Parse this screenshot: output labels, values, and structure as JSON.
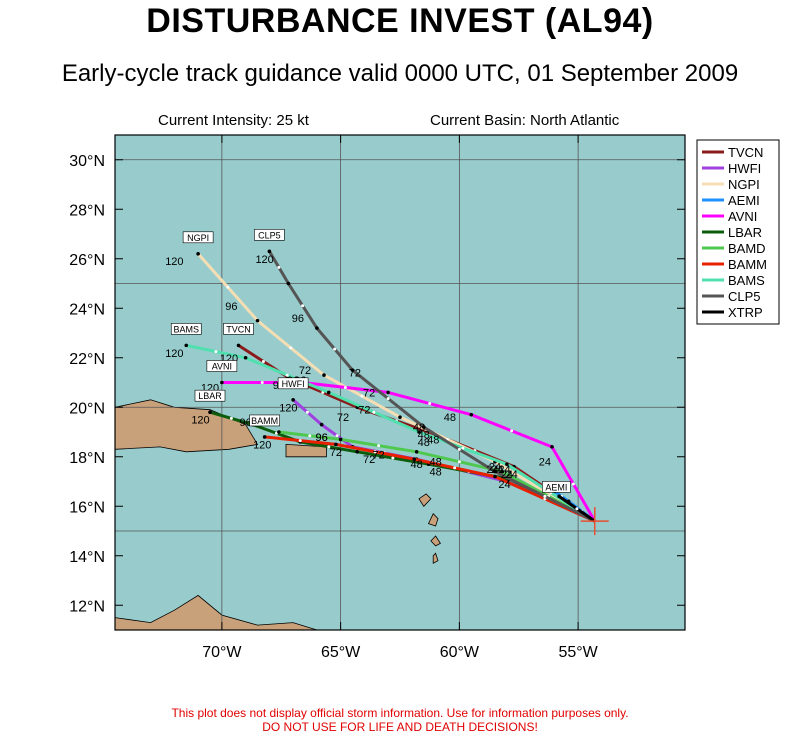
{
  "title": "DISTURBANCE INVEST (AL94)",
  "subtitle": "Early-cycle track guidance valid 0000 UTC, 01 September 2009",
  "current_intensity": "Current Intensity: 25 kt",
  "current_basin": "Current Basin: North Atlantic",
  "disclaimer_line1": "This plot does not display official storm information. Use for information purposes only.",
  "disclaimer_line2": "DO NOT USE FOR LIFE AND DEATH DECISIONS!",
  "colors": {
    "ocean": "#98cccc",
    "land": "#c8a07a",
    "grid": "#555555",
    "storm_marker": "#e85030",
    "disclaimer": "#e00000"
  },
  "chart_data": {
    "type": "map",
    "lon_range": [
      -74.5,
      -50.5
    ],
    "lat_range": [
      11,
      31
    ],
    "x_ticks": [
      {
        "lon": -70,
        "label": "70°W"
      },
      {
        "lon": -65,
        "label": "65°W"
      },
      {
        "lon": -60,
        "label": "60°W"
      },
      {
        "lon": -55,
        "label": "55°W"
      }
    ],
    "y_ticks": [
      {
        "lat": 30,
        "label": "30°N"
      },
      {
        "lat": 28,
        "label": "28°N"
      },
      {
        "lat": 26,
        "label": "26°N"
      },
      {
        "lat": 24,
        "label": "24°N"
      },
      {
        "lat": 22,
        "label": "22°N"
      },
      {
        "lat": 20,
        "label": "20°N"
      },
      {
        "lat": 18,
        "label": "18°N"
      },
      {
        "lat": 16,
        "label": "16°N"
      },
      {
        "lat": 14,
        "label": "14°N"
      },
      {
        "lat": 12,
        "label": "12°N"
      }
    ],
    "grid_lon": [
      -70,
      -65,
      -60,
      -55
    ],
    "grid_lat": [
      15,
      20,
      25,
      30
    ],
    "storm_position": {
      "lon": -54.3,
      "lat": 15.4
    },
    "legend_position": "top-right",
    "models": [
      {
        "name": "TVCN",
        "color": "#8b1a1a",
        "label": "TVCN",
        "label_at": 120,
        "track": [
          [
            -54.3,
            15.4
          ],
          [
            -57.7,
            17.6
          ],
          [
            -61.0,
            18.9
          ],
          [
            -64.3,
            20.0
          ],
          [
            -67.2,
            21.2
          ],
          [
            -69.3,
            22.5
          ]
        ],
        "hours": [
          {
            "h": 24,
            "lon": -57.8,
            "lat": 17.3
          },
          {
            "h": 48,
            "lon": -61.1,
            "lat": 18.7
          },
          {
            "h": 72,
            "lon": -64.0,
            "lat": 19.9
          },
          {
            "h": 96,
            "lon": -66.7,
            "lat": 21.1
          },
          {
            "h": 120,
            "lon": -69.7,
            "lat": 22.0
          }
        ]
      },
      {
        "name": "HWFI",
        "color": "#a040e0",
        "label": "HWFI",
        "label_at": 120,
        "track": [
          [
            -54.3,
            15.4
          ],
          [
            -58.0,
            17.0
          ],
          [
            -61.8,
            17.9
          ],
          [
            -64.5,
            18.4
          ],
          [
            -65.8,
            19.3
          ],
          [
            -67.0,
            20.3
          ]
        ],
        "hours": [
          {
            "h": 24,
            "lon": -58.0,
            "lat": 17.3
          },
          {
            "h": 48,
            "lon": -61.0,
            "lat": 17.8
          },
          {
            "h": 72,
            "lon": -63.4,
            "lat": 18.1
          },
          {
            "h": 96,
            "lon": -65.8,
            "lat": 18.8
          },
          {
            "h": 120,
            "lon": -67.2,
            "lat": 20.0
          }
        ]
      },
      {
        "name": "NGPI",
        "color": "#f5deb3",
        "label": "NGPI",
        "label_at": 120,
        "track": [
          [
            -54.3,
            15.4
          ],
          [
            -58.5,
            17.8
          ],
          [
            -62.5,
            19.6
          ],
          [
            -65.7,
            21.3
          ],
          [
            -68.5,
            23.5
          ],
          [
            -71.0,
            26.2
          ]
        ],
        "hours": [
          {
            "h": 24,
            "lon": -58.5,
            "lat": 17.6
          },
          {
            "h": 48,
            "lon": -61.7,
            "lat": 19.2
          },
          {
            "h": 72,
            "lon": -66.5,
            "lat": 21.5
          },
          {
            "h": 96,
            "lon": -69.6,
            "lat": 24.1
          },
          {
            "h": 120,
            "lon": -72.0,
            "lat": 25.9
          }
        ]
      },
      {
        "name": "AEMI",
        "color": "#1e90ff",
        "label": "AEMI",
        "label_at": 0,
        "track": [
          [
            -54.3,
            15.4
          ],
          [
            -55.4,
            16.2
          ],
          [
            -56.0,
            16.6
          ]
        ],
        "hours": []
      },
      {
        "name": "AVNI",
        "color": "#ff00ff",
        "label": "AVNI",
        "label_at": 120,
        "track": [
          [
            -54.3,
            15.4
          ],
          [
            -56.1,
            18.4
          ],
          [
            -59.5,
            19.7
          ],
          [
            -63.0,
            20.6
          ],
          [
            -66.6,
            21.0
          ],
          [
            -70.0,
            21.0
          ]
        ],
        "hours": [
          {
            "h": 24,
            "lon": -56.4,
            "lat": 17.8
          },
          {
            "h": 48,
            "lon": -60.4,
            "lat": 19.6
          },
          {
            "h": 72,
            "lon": -63.8,
            "lat": 20.6
          },
          {
            "h": 96,
            "lon": -67.6,
            "lat": 20.9
          },
          {
            "h": 120,
            "lon": -70.5,
            "lat": 20.8
          }
        ]
      },
      {
        "name": "LBAR",
        "color": "#0b5c0b",
        "label": "LBAR",
        "label_at": 120,
        "track": [
          [
            -54.3,
            15.4
          ],
          [
            -57.9,
            17.1
          ],
          [
            -61.3,
            17.7
          ],
          [
            -64.3,
            18.2
          ],
          [
            -66.7,
            18.6
          ],
          [
            -68.7,
            19.3
          ],
          [
            -70.5,
            19.8
          ]
        ],
        "hours": [
          {
            "h": 24,
            "lon": -58.1,
            "lat": 16.9
          },
          {
            "h": 48,
            "lon": -61.0,
            "lat": 17.4
          },
          {
            "h": 72,
            "lon": -63.8,
            "lat": 17.9
          },
          {
            "h": 96,
            "lon": -69.0,
            "lat": 19.4
          },
          {
            "h": 120,
            "lon": -70.9,
            "lat": 19.5
          }
        ]
      },
      {
        "name": "BAMD",
        "color": "#4fc84f",
        "label": "BAMD",
        "label_at": 0,
        "track": [
          [
            -54.3,
            15.4
          ],
          [
            -58.2,
            17.4
          ],
          [
            -61.8,
            18.2
          ],
          [
            -65.0,
            18.7
          ],
          [
            -67.6,
            19.0
          ]
        ],
        "hours": []
      },
      {
        "name": "BAMM",
        "color": "#e82000",
        "label": "BAMM",
        "label_at": 120,
        "track": [
          [
            -54.3,
            15.4
          ],
          [
            -58.5,
            17.2
          ],
          [
            -61.9,
            17.9
          ],
          [
            -65.2,
            18.5
          ],
          [
            -68.2,
            18.8
          ]
        ],
        "hours": [
          {
            "h": 24,
            "lon": -58.6,
            "lat": 17.5
          },
          {
            "h": 48,
            "lon": -61.8,
            "lat": 17.7
          },
          {
            "h": 72,
            "lon": -65.2,
            "lat": 18.2
          },
          {
            "h": 96,
            "lon": -65.8,
            "lat": 18.8
          },
          {
            "h": 120,
            "lon": -68.3,
            "lat": 18.5
          }
        ]
      },
      {
        "name": "BAMS",
        "color": "#50e0b0",
        "label": "BAMS",
        "label_at": 120,
        "track": [
          [
            -54.3,
            15.4
          ],
          [
            -58.0,
            17.7
          ],
          [
            -61.7,
            19.0
          ],
          [
            -65.5,
            20.6
          ],
          [
            -69.0,
            22.0
          ],
          [
            -71.5,
            22.5
          ]
        ],
        "hours": [
          {
            "h": 24,
            "lon": -58.4,
            "lat": 17.5
          },
          {
            "h": 48,
            "lon": -61.5,
            "lat": 18.6
          },
          {
            "h": 72,
            "lon": -64.9,
            "lat": 19.6
          },
          {
            "h": 96,
            "lon": -67.0,
            "lat": 21.1
          },
          {
            "h": 120,
            "lon": -72.0,
            "lat": 22.2
          }
        ]
      },
      {
        "name": "CLP5",
        "color": "#555555",
        "label": "CLP5",
        "label_at": 120,
        "track": [
          [
            -54.3,
            15.4
          ],
          [
            -58.5,
            17.4
          ],
          [
            -61.5,
            19.2
          ],
          [
            -64.5,
            21.5
          ],
          [
            -66.0,
            23.2
          ],
          [
            -67.2,
            25.0
          ],
          [
            -68.0,
            26.3
          ]
        ],
        "hours": [
          {
            "h": 24,
            "lon": -58.1,
            "lat": 17.5
          },
          {
            "h": 48,
            "lon": -61.5,
            "lat": 18.9
          },
          {
            "h": 72,
            "lon": -64.4,
            "lat": 21.4
          },
          {
            "h": 96,
            "lon": -66.8,
            "lat": 23.6
          },
          {
            "h": 120,
            "lon": -68.2,
            "lat": 26.0
          }
        ]
      },
      {
        "name": "XTRP",
        "color": "#000000",
        "label": "XTRP",
        "label_at": 0,
        "track": [
          [
            -54.3,
            15.4
          ],
          [
            -55.8,
            16.4
          ]
        ],
        "hours": []
      }
    ],
    "land_polygons": [
      [
        [
          -74.5,
          20.0
        ],
        [
          -73.0,
          20.3
        ],
        [
          -72.0,
          20.0
        ],
        [
          -70.5,
          19.9
        ],
        [
          -69.0,
          19.3
        ],
        [
          -68.5,
          18.5
        ],
        [
          -69.7,
          18.3
        ],
        [
          -71.5,
          18.2
        ],
        [
          -72.6,
          18.4
        ],
        [
          -74.5,
          18.3
        ]
      ],
      [
        [
          -67.3,
          18.5
        ],
        [
          -65.6,
          18.4
        ],
        [
          -65.6,
          18.0
        ],
        [
          -67.3,
          18.0
        ]
      ],
      [
        [
          -74.5,
          11.5
        ],
        [
          -73.0,
          11.3
        ],
        [
          -72.0,
          11.8
        ],
        [
          -71.0,
          12.4
        ],
        [
          -70.0,
          11.6
        ],
        [
          -68.5,
          11.2
        ],
        [
          -67.0,
          11.3
        ],
        [
          -66.0,
          11.0
        ],
        [
          -74.5,
          11.0
        ]
      ],
      [
        [
          -61.1,
          15.7
        ],
        [
          -60.9,
          15.5
        ],
        [
          -61.0,
          15.2
        ],
        [
          -61.3,
          15.3
        ]
      ],
      [
        [
          -61.7,
          16.3
        ],
        [
          -61.4,
          16.5
        ],
        [
          -61.2,
          16.3
        ],
        [
          -61.5,
          16.0
        ]
      ],
      [
        [
          -61.0,
          14.8
        ],
        [
          -60.8,
          14.5
        ],
        [
          -61.0,
          14.4
        ],
        [
          -61.2,
          14.6
        ]
      ],
      [
        [
          -61.0,
          14.1
        ],
        [
          -60.9,
          13.8
        ],
        [
          -61.1,
          13.7
        ],
        [
          -61.1,
          14.0
        ]
      ],
      [
        [
          -77.5,
          22.9
        ],
        [
          -75.5,
          22.2
        ],
        [
          -74.5,
          21.7
        ],
        [
          -74.5,
          20.4
        ],
        [
          -77.5,
          21.0
        ]
      ]
    ]
  }
}
